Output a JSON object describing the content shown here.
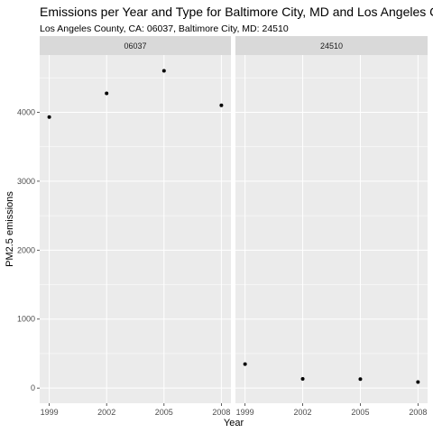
{
  "chart_data": {
    "type": "scatter",
    "title": "Emissions per Year and Type for Baltimore City, MD and Los Angeles County",
    "subtitle": "Los Angeles County, CA: 06037, Baltimore City, MD: 24510",
    "xlabel": "Year",
    "ylabel": "PM2.5 emissions",
    "x_ticks": [
      1999,
      2002,
      2005,
      2008
    ],
    "y_ticks": [
      0,
      1000,
      2000,
      3000,
      4000
    ],
    "xlim": [
      1998.5,
      2008.5
    ],
    "ylim": [
      -220,
      4830
    ],
    "grid": true,
    "facets": [
      {
        "label": "06037",
        "points": [
          {
            "x": 1999,
            "y": 3931
          },
          {
            "x": 2002,
            "y": 4274
          },
          {
            "x": 2005,
            "y": 4601
          },
          {
            "x": 2008,
            "y": 4101
          }
        ]
      },
      {
        "label": "24510",
        "points": [
          {
            "x": 1999,
            "y": 347
          },
          {
            "x": 2002,
            "y": 134
          },
          {
            "x": 2005,
            "y": 130
          },
          {
            "x": 2008,
            "y": 88
          }
        ]
      }
    ],
    "colors": {
      "panel_bg": "#ebebeb",
      "strip_bg": "#d9d9d9",
      "grid_major": "#ffffff",
      "point": "#000000"
    }
  }
}
